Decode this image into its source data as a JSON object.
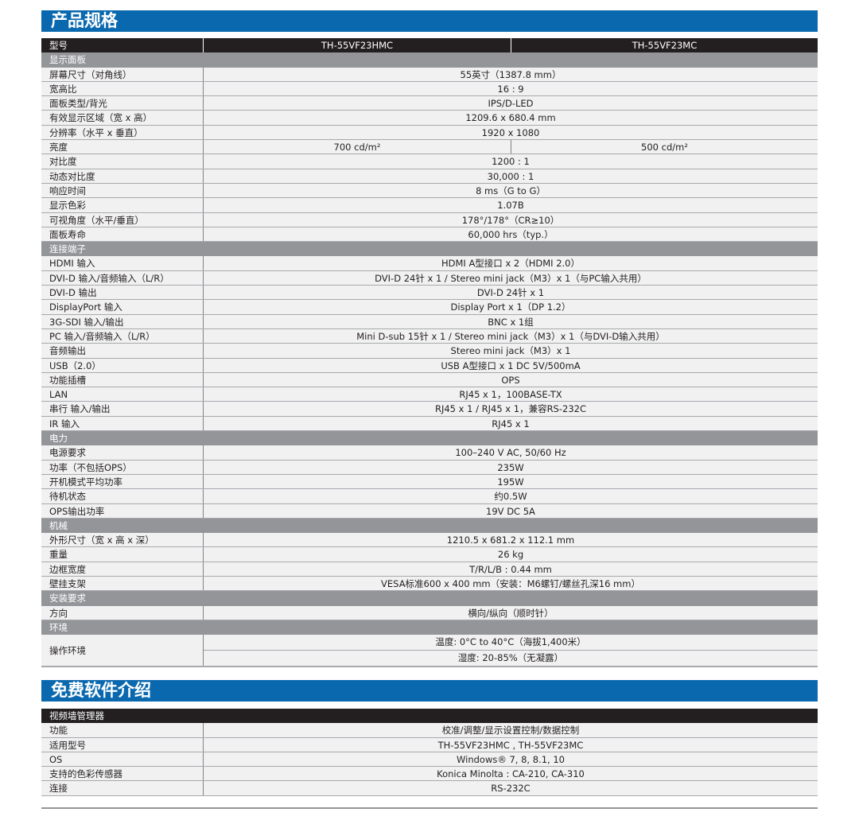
{
  "spec": {
    "title": "产品规格",
    "header": {
      "label": "型号",
      "models": [
        "TH-55VF23HMC",
        "TH-55VF23MC"
      ]
    },
    "sections": [
      {
        "name": "显示面板",
        "rows": [
          {
            "label": "屏幕尺寸（对角线）",
            "value": "55英寸（1387.8 mm）"
          },
          {
            "label": "宽高比",
            "value": "16 : 9"
          },
          {
            "label": "面板类型/背光",
            "value": "IPS/D-LED"
          },
          {
            "label": "有效显示区域（宽 x 高）",
            "value": "1209.6 x 680.4 mm"
          },
          {
            "label": "分辨率（水平 x 垂直）",
            "value": "1920 x 1080"
          },
          {
            "label": "亮度",
            "values": [
              "700 cd/m²",
              "500 cd/m²"
            ]
          },
          {
            "label": "对比度",
            "value": "1200 : 1"
          },
          {
            "label": "动态对比度",
            "value": "30,000 : 1"
          },
          {
            "label": "响应时间",
            "value": "8 ms（G to G）"
          },
          {
            "label": "显示色彩",
            "value": "1.07B"
          },
          {
            "label": "可视角度（水平/垂直）",
            "value": "178°/178°（CR≥10）"
          },
          {
            "label": "面板寿命",
            "value": "60,000 hrs（typ.）"
          }
        ]
      },
      {
        "name": "连接端子",
        "rows": [
          {
            "label": "HDMI 输入",
            "value": "HDMI A型接口 x 2（HDMI 2.0）"
          },
          {
            "label": "DVI-D 输入/音频输入（L/R）",
            "value": "DVI-D 24针 x 1 / Stereo mini jack（M3）x 1（与PC输入共用）"
          },
          {
            "label": "DVI-D 输出",
            "value": "DVI-D 24针 x 1"
          },
          {
            "label": "DisplayPort 输入",
            "value": "Display Port x 1（DP 1.2）"
          },
          {
            "label": "3G-SDI 输入/输出",
            "value": "BNC x 1组"
          },
          {
            "label": "PC 输入/音频输入（L/R）",
            "value": "Mini D-sub 15针 x 1 / Stereo mini jack（M3）x 1（与DVI-D输入共用）"
          },
          {
            "label": "音频输出",
            "value": "Stereo mini jack（M3）x 1"
          },
          {
            "label": "USB（2.0）",
            "value": "USB A型接口 x 1 DC 5V/500mA"
          },
          {
            "label": "功能插槽",
            "value": "OPS"
          },
          {
            "label": "LAN",
            "value": "RJ45 x 1，100BASE-TX"
          },
          {
            "label": "串行 输入/输出",
            "value": "RJ45 x 1 / RJ45 x 1，兼容RS-232C"
          },
          {
            "label": "IR 输入",
            "value": "RJ45 x 1"
          }
        ]
      },
      {
        "name": "电力",
        "rows": [
          {
            "label": "电源要求",
            "value": "100–240 V AC, 50/60 Hz"
          },
          {
            "label": "功率（不包括OPS）",
            "value": "235W"
          },
          {
            "label": "开机模式平均功率",
            "value": "195W"
          },
          {
            "label": "待机状态",
            "value": "约0.5W"
          },
          {
            "label": "OPS输出功率",
            "value": "19V DC 5A"
          }
        ]
      },
      {
        "name": "机械",
        "rows": [
          {
            "label": "外形尺寸（宽 x 高 x 深）",
            "value": "1210.5 x 681.2 x 112.1 mm"
          },
          {
            "label": "重量",
            "value": "26 kg"
          },
          {
            "label": "边框宽度",
            "value": "T/R/L/B : 0.44 mm"
          },
          {
            "label": "壁挂支架",
            "value": "VESA标准600 x 400 mm（安装：M6螺钉/螺丝孔深16 mm）"
          }
        ]
      },
      {
        "name": "安装要求",
        "rows": [
          {
            "label": "方向",
            "value": "横向/纵向（顺时针）"
          }
        ]
      },
      {
        "name": "环境",
        "rows": [
          {
            "label": "操作环境",
            "subvalues": [
              "温度: 0°C to 40°C（海拔1,400米）",
              "湿度: 20-85%（无凝露）"
            ]
          }
        ]
      }
    ]
  },
  "software": {
    "title": "免费软件介绍",
    "header": "视频墙管理器",
    "rows": [
      {
        "label": "功能",
        "value": "校准/调整/显示设置控制/数据控制"
      },
      {
        "label": "适用型号",
        "value": "TH-55VF23HMC , TH-55VF23MC"
      },
      {
        "label": "OS",
        "value": "Windows® 7, 8, 8.1, 10"
      },
      {
        "label": "支持的色彩传感器",
        "value": "Konica Minolta : CA-210, CA-310"
      },
      {
        "label": "连接",
        "value": "RS-232C"
      }
    ]
  },
  "colors": {
    "title_bar": "#0a69ae",
    "header_row": "#231f20",
    "section_row": "#939598",
    "row_bg": "#f1f1f2"
  }
}
